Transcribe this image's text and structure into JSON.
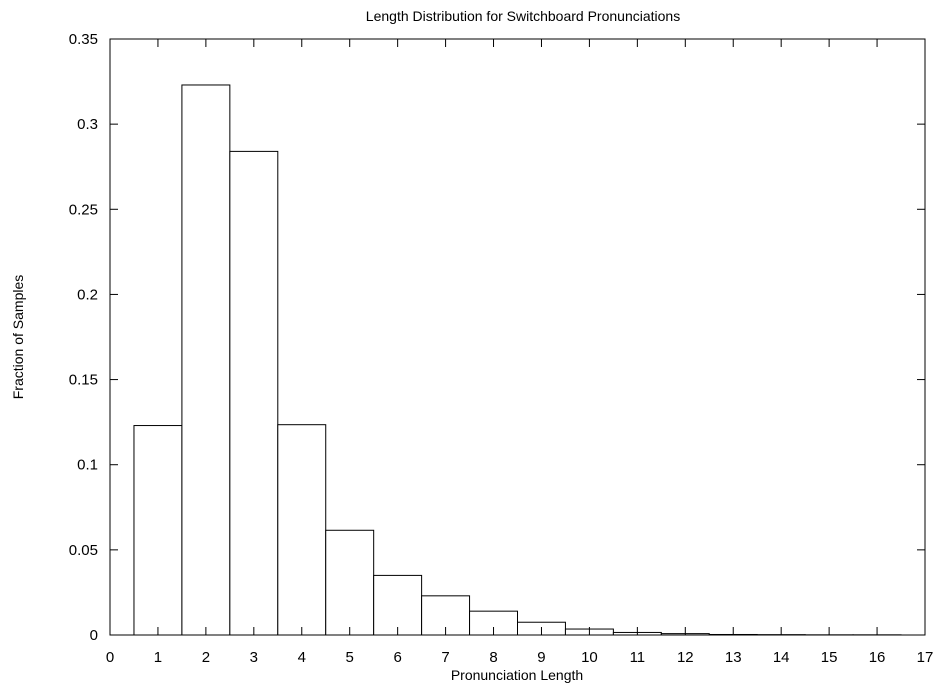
{
  "chart_data": {
    "type": "bar",
    "title": "Length Distribution for Switchboard Pronunciations",
    "xlabel": "Pronunciation Length",
    "ylabel": "Fraction of Samples",
    "categories": [
      1,
      2,
      3,
      4,
      5,
      6,
      7,
      8,
      9,
      10,
      11,
      12,
      13,
      14,
      15,
      16
    ],
    "values": [
      0.123,
      0.323,
      0.284,
      0.1235,
      0.0615,
      0.035,
      0.023,
      0.014,
      0.0075,
      0.0035,
      0.0015,
      0.0008,
      0.0003,
      0.0002,
      0.0001,
      0.0001
    ],
    "xlim": [
      0,
      17
    ],
    "ylim": [
      0,
      0.35
    ],
    "x_ticks": [
      "0",
      "1",
      "2",
      "3",
      "4",
      "5",
      "6",
      "7",
      "8",
      "9",
      "10",
      "11",
      "12",
      "13",
      "14",
      "15",
      "16",
      "17"
    ],
    "y_ticks": [
      "0",
      "0.05",
      "0.1",
      "0.15",
      "0.2",
      "0.25",
      "0.3",
      "0.35"
    ],
    "grid": false,
    "legend": "none"
  }
}
